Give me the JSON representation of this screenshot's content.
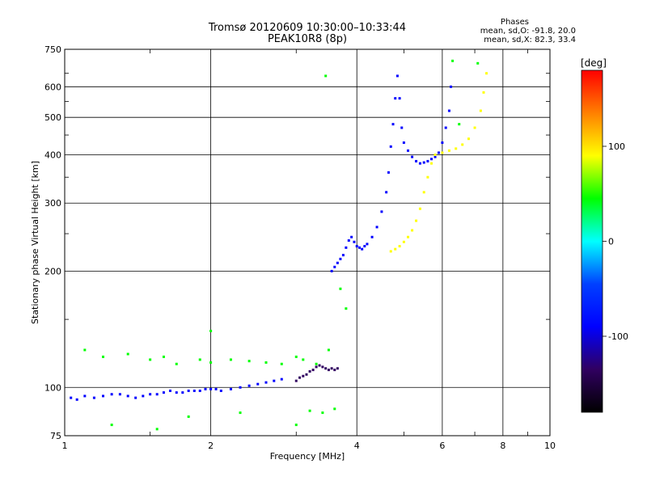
{
  "chart_data": {
    "type": "scatter",
    "title": "Tromsø 20120609 10:30:00–10:33:44",
    "subtitle": "PEAK10R8 (8p)",
    "xlabel": "Frequency [MHz]",
    "ylabel": "Stationary phase Virtual Height [km]",
    "x_scale": "log",
    "y_scale": "log",
    "xlim": [
      1,
      10
    ],
    "ylim": [
      75,
      750
    ],
    "x_ticks": [
      1,
      2,
      4,
      6,
      8,
      10
    ],
    "x_tick_labels": [
      "1",
      "2",
      "4",
      "6",
      "8",
      "10"
    ],
    "y_ticks": [
      75,
      100,
      200,
      300,
      400,
      500,
      600,
      750
    ],
    "y_tick_labels": [
      "75",
      "100",
      "200",
      "300",
      "400",
      "500",
      "600",
      "750"
    ],
    "grid": true,
    "phase_stats": {
      "heading": "Phases",
      "o_line": "mean, sd,O: -91.8, 20.0",
      "x_line": "mean, sd,X: 82.3, 33.4"
    },
    "colorbar": {
      "label": "[deg]",
      "range": [
        -180,
        180
      ],
      "ticks": [
        100,
        0,
        -100
      ],
      "tick_labels": [
        "100",
        "0",
        "-100"
      ],
      "colors": [
        "#ff0000",
        "#ff8000",
        "#ffff00",
        "#00ff00",
        "#00ffff",
        "#0040ff",
        "#0000ff",
        "#300060",
        "#000000"
      ]
    },
    "series": [
      {
        "trace": "o-lower",
        "phase": -110,
        "points": [
          [
            1.03,
            94
          ],
          [
            1.06,
            93
          ],
          [
            1.1,
            95
          ],
          [
            1.15,
            94
          ],
          [
            1.2,
            95
          ],
          [
            1.25,
            96
          ],
          [
            1.3,
            96
          ],
          [
            1.35,
            95
          ],
          [
            1.4,
            94
          ],
          [
            1.45,
            95
          ],
          [
            1.5,
            96
          ],
          [
            1.55,
            96
          ],
          [
            1.6,
            97
          ],
          [
            1.65,
            98
          ],
          [
            1.7,
            97
          ],
          [
            1.75,
            97
          ],
          [
            1.8,
            98
          ],
          [
            1.85,
            98
          ],
          [
            1.9,
            98
          ],
          [
            1.95,
            99
          ],
          [
            2.0,
            99
          ],
          [
            2.05,
            99
          ],
          [
            2.1,
            98
          ],
          [
            2.2,
            99
          ],
          [
            2.3,
            100
          ],
          [
            2.4,
            101
          ],
          [
            2.5,
            102
          ],
          [
            2.6,
            103
          ],
          [
            2.7,
            104
          ],
          [
            2.8,
            105
          ]
        ]
      },
      {
        "trace": "o-step",
        "phase": -130,
        "points": [
          [
            3.0,
            104
          ],
          [
            3.05,
            106
          ],
          [
            3.1,
            107
          ],
          [
            3.15,
            108
          ],
          [
            3.2,
            110
          ],
          [
            3.25,
            111
          ],
          [
            3.3,
            113
          ],
          [
            3.35,
            114
          ],
          [
            3.4,
            113
          ],
          [
            3.45,
            112
          ],
          [
            3.5,
            111
          ],
          [
            3.55,
            112
          ],
          [
            3.6,
            111
          ],
          [
            3.65,
            112
          ]
        ]
      },
      {
        "trace": "o-f",
        "phase": -110,
        "points": [
          [
            3.55,
            200
          ],
          [
            3.6,
            205
          ],
          [
            3.65,
            210
          ],
          [
            3.7,
            215
          ],
          [
            3.75,
            220
          ],
          [
            3.8,
            230
          ],
          [
            3.85,
            240
          ],
          [
            3.9,
            245
          ],
          [
            3.95,
            238
          ],
          [
            4.0,
            232
          ],
          [
            4.05,
            230
          ],
          [
            4.1,
            228
          ],
          [
            4.15,
            232
          ],
          [
            4.2,
            235
          ],
          [
            4.3,
            245
          ],
          [
            4.4,
            260
          ],
          [
            4.5,
            285
          ],
          [
            4.6,
            320
          ],
          [
            4.65,
            360
          ],
          [
            4.7,
            420
          ],
          [
            4.75,
            480
          ],
          [
            4.8,
            560
          ],
          [
            4.85,
            640
          ],
          [
            4.9,
            560
          ],
          [
            4.95,
            470
          ],
          [
            5.0,
            430
          ],
          [
            5.1,
            410
          ],
          [
            5.2,
            395
          ],
          [
            5.3,
            385
          ],
          [
            5.4,
            380
          ],
          [
            5.5,
            382
          ],
          [
            5.6,
            385
          ],
          [
            5.7,
            390
          ],
          [
            5.8,
            395
          ],
          [
            5.9,
            405
          ],
          [
            6.0,
            430
          ],
          [
            6.1,
            470
          ],
          [
            6.2,
            520
          ],
          [
            6.25,
            600
          ]
        ]
      },
      {
        "trace": "x-f",
        "phase": 95,
        "points": [
          [
            4.7,
            225
          ],
          [
            4.8,
            228
          ],
          [
            4.9,
            232
          ],
          [
            5.0,
            238
          ],
          [
            5.1,
            245
          ],
          [
            5.2,
            255
          ],
          [
            5.3,
            270
          ],
          [
            5.4,
            290
          ],
          [
            5.5,
            320
          ],
          [
            5.6,
            350
          ],
          [
            5.7,
            380
          ],
          [
            5.8,
            400
          ],
          [
            6.0,
            405
          ],
          [
            6.2,
            410
          ],
          [
            6.4,
            415
          ],
          [
            6.6,
            425
          ],
          [
            6.8,
            440
          ],
          [
            7.0,
            470
          ],
          [
            7.2,
            520
          ],
          [
            7.3,
            580
          ],
          [
            7.4,
            650
          ]
        ]
      },
      {
        "trace": "scattered",
        "phase": 60,
        "points": [
          [
            1.1,
            125
          ],
          [
            1.2,
            120
          ],
          [
            1.35,
            122
          ],
          [
            1.5,
            118
          ],
          [
            1.6,
            120
          ],
          [
            1.7,
            115
          ],
          [
            1.9,
            118
          ],
          [
            2.0,
            116
          ],
          [
            2.2,
            118
          ],
          [
            2.4,
            117
          ],
          [
            2.6,
            116
          ],
          [
            2.8,
            115
          ],
          [
            3.0,
            120
          ],
          [
            3.1,
            118
          ],
          [
            3.3,
            115
          ],
          [
            3.5,
            125
          ],
          [
            1.25,
            80
          ],
          [
            1.55,
            78
          ],
          [
            1.8,
            84
          ],
          [
            2.3,
            86
          ],
          [
            3.0,
            80
          ],
          [
            3.2,
            87
          ],
          [
            3.4,
            86
          ],
          [
            3.6,
            88
          ],
          [
            2.0,
            140
          ],
          [
            3.8,
            160
          ],
          [
            3.7,
            180
          ],
          [
            3.45,
            640
          ],
          [
            6.5,
            480
          ],
          [
            7.1,
            690
          ],
          [
            6.3,
            700
          ]
        ]
      }
    ]
  }
}
